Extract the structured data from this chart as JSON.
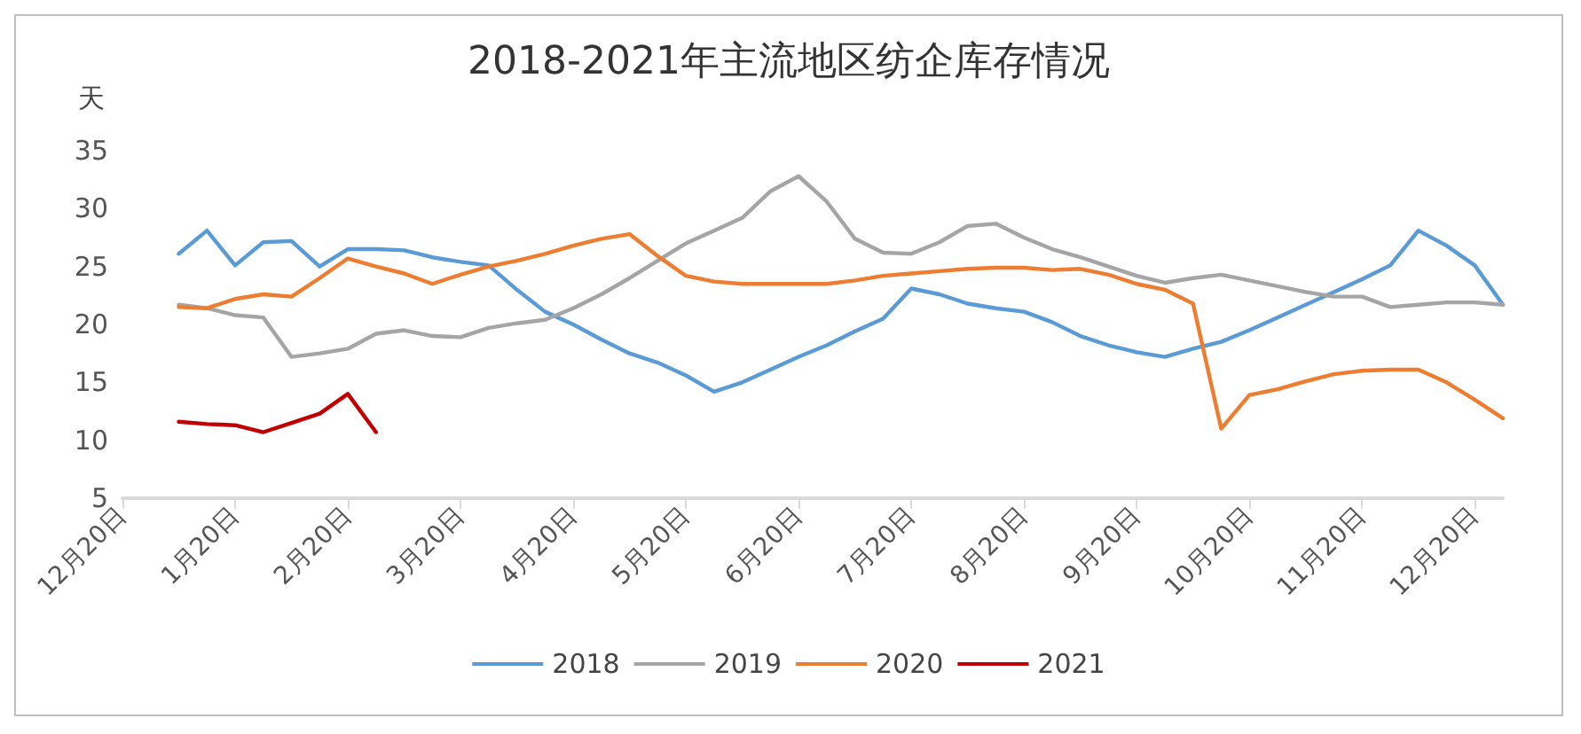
{
  "chart_data": {
    "type": "line",
    "title": "2018-2021年主流地区纺企库存情况",
    "ylabel": "天",
    "categories": [
      "12月20日",
      null,
      null,
      null,
      "1月20日",
      null,
      null,
      null,
      "2月20日",
      null,
      null,
      null,
      "3月20日",
      null,
      null,
      null,
      "4月20日",
      null,
      null,
      null,
      "5月20日",
      null,
      null,
      null,
      "6月20日",
      null,
      null,
      null,
      "7月20日",
      null,
      null,
      null,
      "8月20日",
      null,
      null,
      null,
      "9月20日",
      null,
      null,
      null,
      "10月20日",
      null,
      null,
      null,
      "11月20日",
      null,
      null,
      null,
      "12月20日",
      null
    ],
    "ylim": [
      5,
      35
    ],
    "yticks": [
      5,
      10,
      15,
      20,
      25,
      30,
      35
    ],
    "grid": false,
    "legend": "bottom",
    "marker": "none",
    "line_style": "solid",
    "series": [
      {
        "name": "2018",
        "color": "#5b9bd5",
        "values": [
          null,
          null,
          26.1,
          28.1,
          25.1,
          27.1,
          27.2,
          25,
          26.5,
          26.5,
          26.4,
          25.8,
          25.4,
          25.1,
          23,
          21.1,
          20,
          18.7,
          17.5,
          16.7,
          15.6,
          14.2,
          15,
          16.1,
          17.2,
          18.2,
          19.4,
          20.5,
          23.1,
          22.6,
          21.8,
          21.4,
          21.1,
          20.2,
          19,
          18.2,
          17.6,
          17.2,
          17.9,
          18.5,
          19.5,
          20.6,
          21.7,
          22.8,
          23.9,
          25.1,
          28.1,
          26.8,
          25.1,
          21.7
        ]
      },
      {
        "name": "2019",
        "color": "#a5a5a5",
        "values": [
          null,
          null,
          21.7,
          21.4,
          20.8,
          20.6,
          17.2,
          17.5,
          17.9,
          19.2,
          19.5,
          19,
          18.9,
          19.7,
          20.1,
          20.4,
          21.4,
          22.6,
          24,
          25.5,
          27,
          28.1,
          29.2,
          31.5,
          32.8,
          30.6,
          27.4,
          26.2,
          26.1,
          27.1,
          28.5,
          28.7,
          27.5,
          26.5,
          25.8,
          25,
          24.2,
          23.6,
          24,
          24.3,
          23.8,
          23.3,
          22.8,
          22.4,
          22.4,
          21.5,
          21.7,
          21.9,
          21.9,
          21.7
        ]
      },
      {
        "name": "2020",
        "color": "#ed7d31",
        "values": [
          null,
          null,
          21.5,
          21.4,
          22.2,
          22.6,
          22.4,
          24,
          25.7,
          25,
          24.4,
          23.5,
          24.3,
          25,
          25.5,
          26.1,
          26.8,
          27.4,
          27.8,
          25.9,
          24.2,
          23.7,
          23.5,
          23.5,
          23.5,
          23.5,
          23.8,
          24.2,
          24.4,
          24.6,
          24.8,
          24.9,
          24.9,
          24.7,
          24.8,
          24.3,
          23.5,
          23,
          21.8,
          11,
          13.9,
          14.4,
          15.1,
          15.7,
          16,
          16.1,
          16.1,
          15,
          13.5,
          11.9
        ]
      },
      {
        "name": "2021",
        "color": "#c00000",
        "values": [
          null,
          null,
          11.6,
          11.4,
          11.3,
          10.7,
          11.5,
          12.3,
          14,
          10.7,
          null,
          null,
          null,
          null,
          null,
          null,
          null,
          null,
          null,
          null,
          null,
          null,
          null,
          null,
          null,
          null,
          null,
          null,
          null,
          null,
          null,
          null,
          null,
          null,
          null,
          null,
          null,
          null,
          null,
          null,
          null,
          null,
          null,
          null,
          null,
          null,
          null,
          null,
          null,
          null
        ]
      }
    ]
  }
}
